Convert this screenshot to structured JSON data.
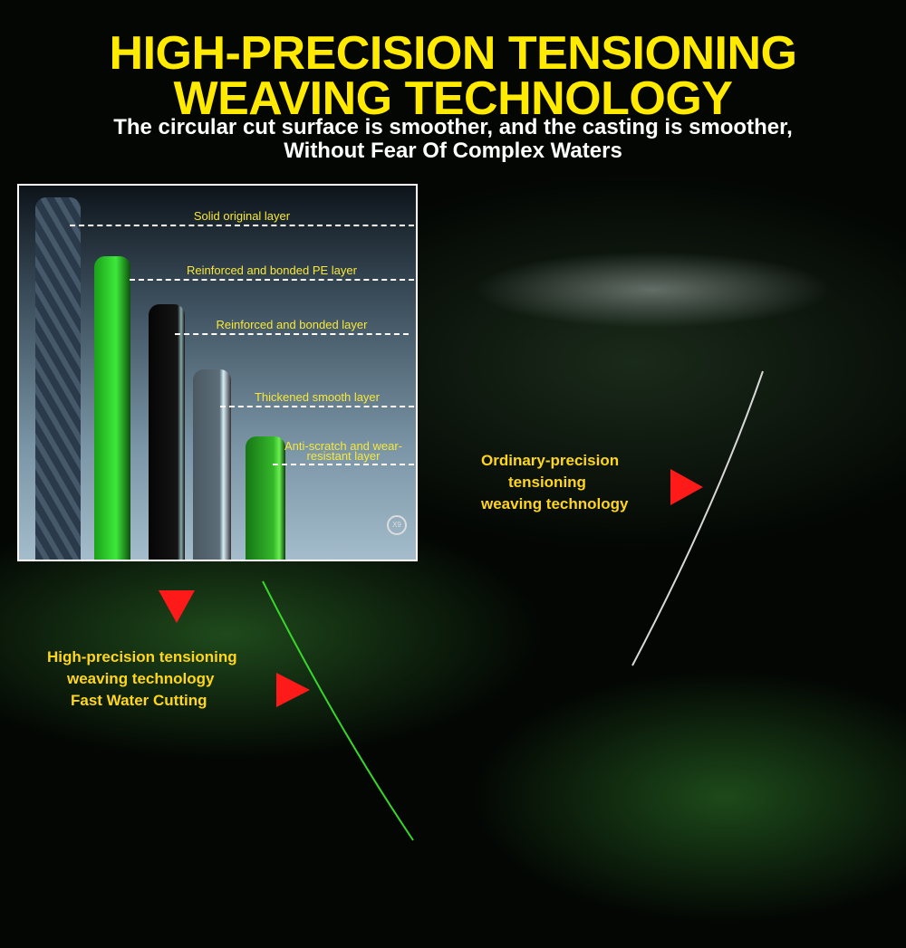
{
  "header": {
    "title_line1": "HIGH-PRECISION TENSIONING",
    "title_line2": "WEAVING TECHNOLOGY",
    "subtitle_line1": "The circular cut surface is smoother, and the casting is smoother,",
    "subtitle_line2": "Without Fear Of Complex Waters"
  },
  "inset": {
    "layers": [
      "Solid original layer",
      "Reinforced and bonded PE layer",
      "Reinforced and bonded  layer",
      "Thickened smooth layer",
      "Anti-scratch and wear-resistant layer"
    ],
    "badge": "X9"
  },
  "ordinary": {
    "line1": "Ordinary-precision",
    "line2": "tensioning",
    "line3": "weaving technology"
  },
  "high": {
    "line1": "High-precision tensioning",
    "line2": "weaving technology",
    "line3": "Fast Water Cutting"
  },
  "colors": {
    "title": "#ffea00",
    "caption": "#ffd61a",
    "arrow": "#ff1a1a",
    "green_line": "#38d62a"
  }
}
